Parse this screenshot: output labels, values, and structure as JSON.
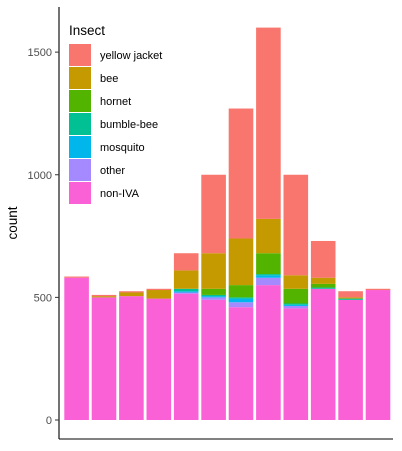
{
  "chart_data": {
    "type": "bar",
    "stacked": true,
    "ylabel": "count",
    "xlabel": "",
    "ylim": [
      0,
      1650
    ],
    "y_ticks": [
      0,
      500,
      1000,
      1500
    ],
    "grid": false,
    "legend": {
      "title": "Insect",
      "position": "top-left inside plot"
    },
    "series": [
      {
        "name": "yellow jacket",
        "color": "#F8766D",
        "values": [
          5,
          5,
          5,
          5,
          70,
          320,
          530,
          780,
          410,
          150,
          25,
          5
        ]
      },
      {
        "name": "bee",
        "color": "#C49A00",
        "values": [
          0,
          5,
          15,
          35,
          75,
          145,
          190,
          140,
          55,
          25,
          5,
          0
        ]
      },
      {
        "name": "hornet",
        "color": "#53B400",
        "values": [
          0,
          0,
          0,
          0,
          0,
          25,
          50,
          85,
          60,
          15,
          0,
          0
        ]
      },
      {
        "name": "bumble-bee",
        "color": "#00C094",
        "values": [
          0,
          0,
          0,
          0,
          10,
          5,
          5,
          5,
          5,
          5,
          5,
          0
        ]
      },
      {
        "name": "mosquito",
        "color": "#00B6EB",
        "values": [
          0,
          0,
          0,
          0,
          5,
          5,
          15,
          10,
          5,
          0,
          0,
          0
        ]
      },
      {
        "name": "other",
        "color": "#A58AFF",
        "values": [
          0,
          0,
          0,
          0,
          5,
          10,
          20,
          30,
          10,
          0,
          0,
          0
        ]
      },
      {
        "name": "non-IVA",
        "color": "#FB61D7",
        "values": [
          580,
          500,
          505,
          495,
          515,
          490,
          460,
          550,
          455,
          535,
          490,
          530
        ]
      }
    ]
  }
}
